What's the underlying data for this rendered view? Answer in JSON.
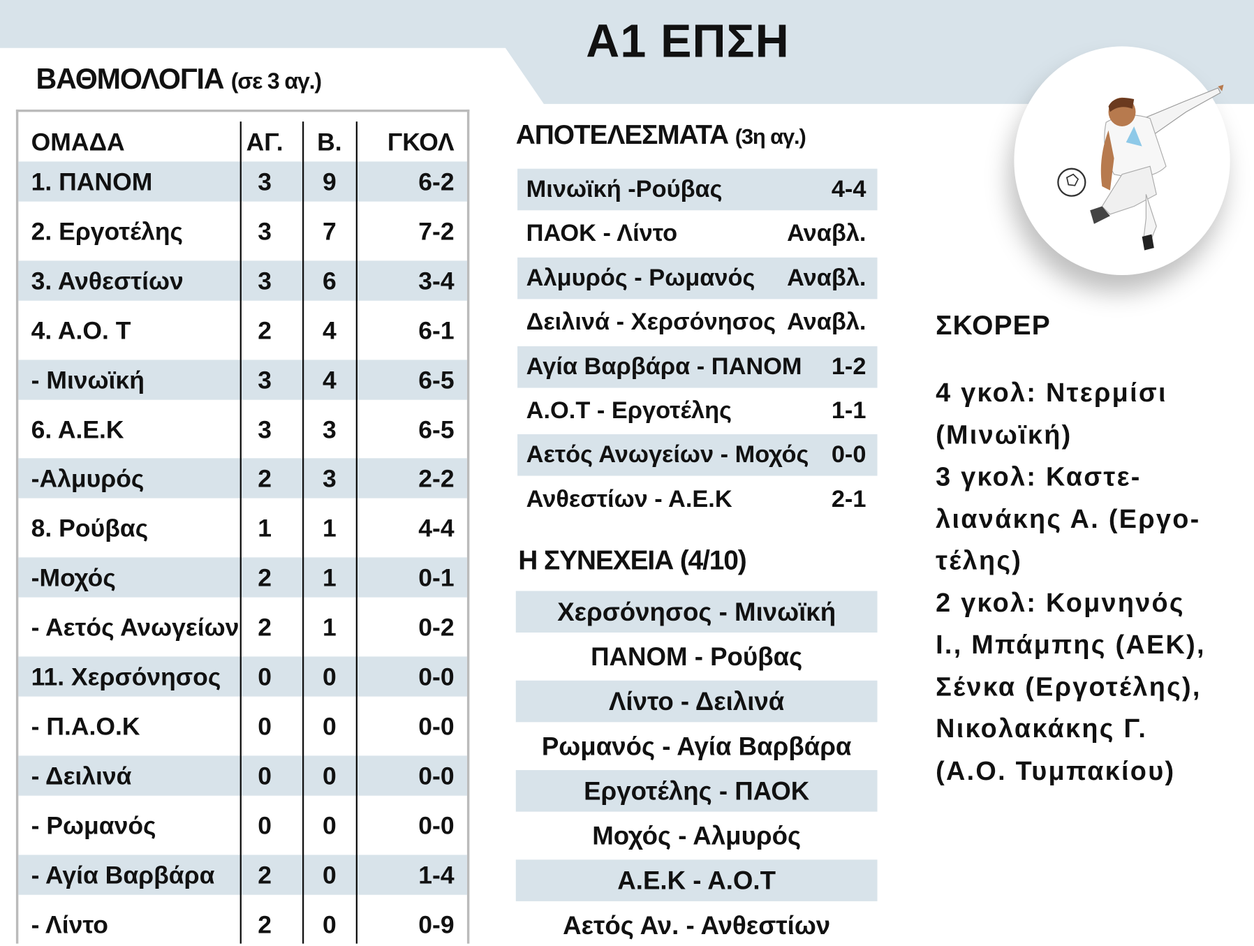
{
  "title": "Α1 ΕΠΣΗ",
  "colors": {
    "band": "#d8e3ea",
    "text": "#111111",
    "table_border": "#bbbbbb"
  },
  "standings": {
    "heading": "ΒΑΘΜΟΛΟΓΙΑ",
    "heading_note": "(σε 3 αγ.)",
    "columns": [
      "ΟΜΑΔΑ",
      "ΑΓ.",
      "Β.",
      "ΓΚΟΛ"
    ],
    "rows": [
      {
        "team": "1. ΠΑΝΟΜ",
        "games": "3",
        "points": "9",
        "goals": "6-2"
      },
      {
        "team": "2. Εργοτέλης",
        "games": "3",
        "points": "7",
        "goals": "7-2"
      },
      {
        "team": "3. Ανθεστίων",
        "games": "3",
        "points": "6",
        "goals": "3-4"
      },
      {
        "team": "4. Α.Ο. Τ",
        "games": "2",
        "points": "4",
        "goals": "6-1"
      },
      {
        "team": "- Μινωϊκή",
        "games": "3",
        "points": "4",
        "goals": "6-5"
      },
      {
        "team": "6. Α.Ε.Κ",
        "games": "3",
        "points": "3",
        "goals": "6-5"
      },
      {
        "team": "-Αλμυρός",
        "games": "2",
        "points": "3",
        "goals": "2-2"
      },
      {
        "team": "8.    Ρούβας",
        "games": "1",
        "points": "1",
        "goals": "4-4"
      },
      {
        "team": "-Μοχός",
        "games": "2",
        "points": "1",
        "goals": "0-1"
      },
      {
        "team": "-   Αετός Ανωγείων",
        "games": "2",
        "points": "1",
        "goals": "0-2"
      },
      {
        "team": "11. Χερσόνησος",
        "games": "0",
        "points": "0",
        "goals": "0-0"
      },
      {
        "team": "- Π.Α.Ο.Κ",
        "games": "0",
        "points": "0",
        "goals": "0-0"
      },
      {
        "team": "- Δειλινά",
        "games": "0",
        "points": "0",
        "goals": "0-0"
      },
      {
        "team": "- Ρωμανός",
        "games": "0",
        "points": "0",
        "goals": "0-0"
      },
      {
        "team": "- Αγία Βαρβάρα",
        "games": "2",
        "points": "0",
        "goals": "1-4"
      },
      {
        "team": "- Λίντο",
        "games": "2",
        "points": "0",
        "goals": "0-9"
      }
    ]
  },
  "results": {
    "heading": "ΑΠΟΤΕΛΕΣΜΑΤΑ",
    "heading_note": "(3η αγ.)",
    "rows": [
      {
        "match": "Μινωϊκή -Ρούβας",
        "score": "4-4"
      },
      {
        "match": "ΠΑΟΚ - Λίντο",
        "score": "Αναβλ."
      },
      {
        "match": "Αλμυρός - Ρωμανός",
        "score": "Αναβλ."
      },
      {
        "match": "Δειλινά  - Χερσόνησος",
        "score": "Αναβλ."
      },
      {
        "match": "Αγία Βαρβάρα - ΠΑΝΟΜ",
        "score": "1-2"
      },
      {
        "match": "Α.Ο.Τ - Εργοτέλης",
        "score": "1-1"
      },
      {
        "match": "Αετός Ανωγείων - Μοχός",
        "score": "0-0"
      },
      {
        "match": "Ανθεστίων - Α.Ε.Κ",
        "score": "2-1"
      }
    ]
  },
  "fixtures": {
    "heading": "Η ΣΥΝΕΧΕΙΑ (4/10)",
    "rows": [
      "Χερσόνησος - Μινωϊκή",
      "ΠΑΝΟΜ - Ρούβας",
      "Λίντο - Δειλινά",
      "Ρωμανός  - Αγία Βαρβάρα",
      "Εργοτέλης  - ΠΑΟΚ",
      "Μοχός  - Αλμυρός",
      "Α.Ε.Κ  - Α.Ο.Τ",
      "Αετός Αν. - Ανθεστίων"
    ]
  },
  "scorers": {
    "heading": "ΣΚΟΡΕΡ",
    "lines": [
      "4 γκολ: Ντερμίσι",
      "(Μινωϊκή)",
      "3 γκολ:   Καστε-",
      "λιανάκης Α. (Εργο-",
      "τέλης)",
      "2 γκολ: Κομνηνός",
      "Ι., Μπάμπης (ΑΕΚ),",
      "Σένκα (Εργοτέλης),",
      "Νικολακάκης Γ.",
      "(Α.Ο. Τυμπακίου)"
    ]
  },
  "illustration": "football-player-kicking-ball"
}
